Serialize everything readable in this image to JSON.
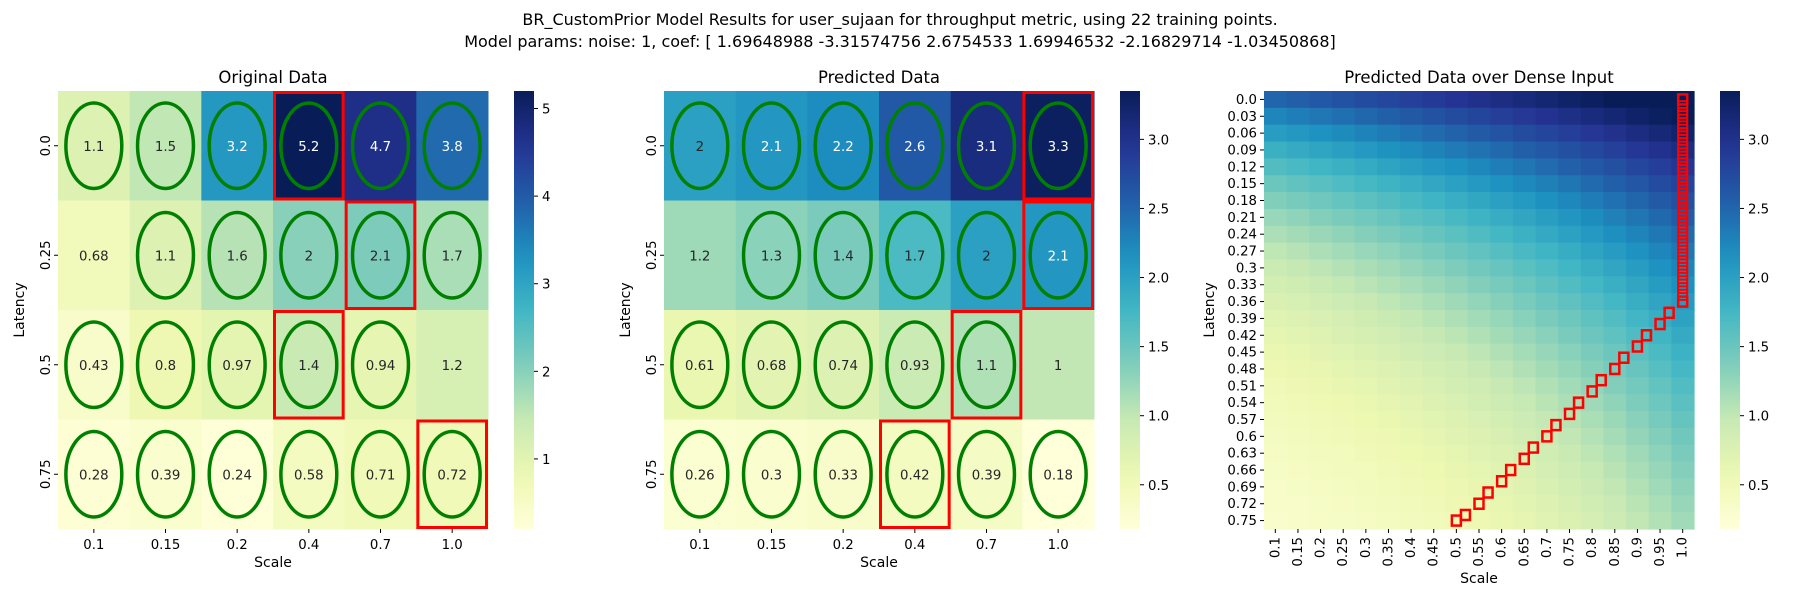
{
  "figure": {
    "title_line1": "BR_CustomPrior Model Results for user_sujaan for throughput metric, using 22 training points.",
    "title_line2": "Model params: noise: 1, coef: [ 1.69648988 -3.31574756  2.6754533   1.69946532 -2.16829714 -1.03450868]"
  },
  "chart_data": [
    {
      "type": "heatmap",
      "title": "Original Data",
      "xlabel": "Scale",
      "ylabel": "Latency",
      "x_ticks": [
        "0.1",
        "0.15",
        "0.2",
        "0.4",
        "0.7",
        "1.0"
      ],
      "y_ticks": [
        "0.0",
        "0.25",
        "0.5",
        "0.75"
      ],
      "values": [
        [
          1.1,
          1.5,
          3.2,
          5.2,
          4.7,
          3.8
        ],
        [
          0.68,
          1.1,
          1.6,
          2,
          2.1,
          1.7
        ],
        [
          0.43,
          0.8,
          0.97,
          1.4,
          0.94,
          1.2
        ],
        [
          0.28,
          0.39,
          0.24,
          0.58,
          0.71,
          0.72
        ]
      ],
      "vmin": 0.2,
      "vmax": 5.2,
      "colorbar_ticks": [
        1,
        2,
        3,
        4,
        5
      ],
      "colormap": "YlGnBu",
      "circled_cells": [
        [
          0,
          0
        ],
        [
          0,
          1
        ],
        [
          0,
          2
        ],
        [
          0,
          3
        ],
        [
          0,
          4
        ],
        [
          0,
          5
        ],
        [
          1,
          1
        ],
        [
          1,
          2
        ],
        [
          1,
          3
        ],
        [
          1,
          4
        ],
        [
          1,
          5
        ],
        [
          2,
          0
        ],
        [
          2,
          1
        ],
        [
          2,
          2
        ],
        [
          2,
          3
        ],
        [
          2,
          4
        ],
        [
          3,
          0
        ],
        [
          3,
          1
        ],
        [
          3,
          2
        ],
        [
          3,
          3
        ],
        [
          3,
          4
        ],
        [
          3,
          5
        ]
      ],
      "boxed_cells": [
        [
          0,
          3
        ],
        [
          1,
          4
        ],
        [
          2,
          3
        ],
        [
          3,
          5
        ]
      ],
      "marker_colors": {
        "circle": "#008000",
        "box": "#ff0000"
      }
    },
    {
      "type": "heatmap",
      "title": "Predicted Data",
      "xlabel": "Scale",
      "ylabel": "Latency",
      "x_ticks": [
        "0.1",
        "0.15",
        "0.2",
        "0.4",
        "0.7",
        "1.0"
      ],
      "y_ticks": [
        "0.0",
        "0.25",
        "0.5",
        "0.75"
      ],
      "values": [
        [
          2,
          2.1,
          2.2,
          2.6,
          3.1,
          3.3
        ],
        [
          1.2,
          1.3,
          1.4,
          1.7,
          2,
          2.1
        ],
        [
          0.61,
          0.68,
          0.74,
          0.93,
          1.1,
          1
        ],
        [
          0.26,
          0.3,
          0.33,
          0.42,
          0.39,
          0.18
        ]
      ],
      "vmin": 0.18,
      "vmax": 3.35,
      "colorbar_ticks": [
        0.5,
        1.0,
        1.5,
        2.0,
        2.5,
        3.0
      ],
      "colormap": "YlGnBu",
      "circled_cells": [
        [
          0,
          0
        ],
        [
          0,
          1
        ],
        [
          0,
          2
        ],
        [
          0,
          3
        ],
        [
          0,
          4
        ],
        [
          0,
          5
        ],
        [
          1,
          1
        ],
        [
          1,
          2
        ],
        [
          1,
          3
        ],
        [
          1,
          4
        ],
        [
          1,
          5
        ],
        [
          2,
          0
        ],
        [
          2,
          1
        ],
        [
          2,
          2
        ],
        [
          2,
          3
        ],
        [
          2,
          4
        ],
        [
          3,
          0
        ],
        [
          3,
          1
        ],
        [
          3,
          2
        ],
        [
          3,
          3
        ],
        [
          3,
          4
        ],
        [
          3,
          5
        ]
      ],
      "boxed_cells": [
        [
          0,
          5
        ],
        [
          1,
          5
        ],
        [
          2,
          4
        ],
        [
          3,
          3
        ]
      ],
      "marker_colors": {
        "circle": "#008000",
        "box": "#ff0000"
      }
    },
    {
      "type": "heatmap",
      "title": "Predicted Data over Dense Input",
      "xlabel": "Scale",
      "ylabel": "Latency",
      "x_ticks": [
        "0.1",
        "0.15",
        "0.2",
        "0.25",
        "0.3",
        "0.35",
        "0.4",
        "0.45",
        "0.5",
        "0.55",
        "0.6",
        "0.65",
        "0.7",
        "0.75",
        "0.8",
        "0.85",
        "0.9",
        "0.95",
        "1.0"
      ],
      "y_ticks": [
        "0.0",
        "0.03",
        "0.06",
        "0.09",
        "0.12",
        "0.15",
        "0.18",
        "0.21",
        "0.24",
        "0.27",
        "0.3",
        "0.33",
        "0.36",
        "0.39",
        "0.42",
        "0.45",
        "0.48",
        "0.51",
        "0.54",
        "0.57",
        "0.6",
        "0.63",
        "0.66",
        "0.69",
        "0.72",
        "0.75"
      ],
      "x_range": [
        0.1,
        1.0
      ],
      "y_range": [
        0.0,
        0.75
      ],
      "vmin": 0.18,
      "vmax": 3.35,
      "colorbar_ticks": [
        0.5,
        1.0,
        1.5,
        2.0,
        2.5,
        3.0
      ],
      "colormap": "YlGnBu",
      "max_path": [
        [
          0.5,
          0.75
        ],
        [
          0.52,
          0.74
        ],
        [
          0.55,
          0.72
        ],
        [
          0.57,
          0.7
        ],
        [
          0.6,
          0.68
        ],
        [
          0.62,
          0.66
        ],
        [
          0.65,
          0.64
        ],
        [
          0.67,
          0.62
        ],
        [
          0.7,
          0.6
        ],
        [
          0.72,
          0.58
        ],
        [
          0.75,
          0.56
        ],
        [
          0.77,
          0.54
        ],
        [
          0.8,
          0.52
        ],
        [
          0.82,
          0.5
        ],
        [
          0.85,
          0.48
        ],
        [
          0.87,
          0.46
        ],
        [
          0.9,
          0.44
        ],
        [
          0.92,
          0.42
        ],
        [
          0.95,
          0.4
        ],
        [
          0.97,
          0.38
        ],
        [
          1.0,
          0.36
        ],
        [
          1.0,
          0.0
        ]
      ]
    }
  ]
}
